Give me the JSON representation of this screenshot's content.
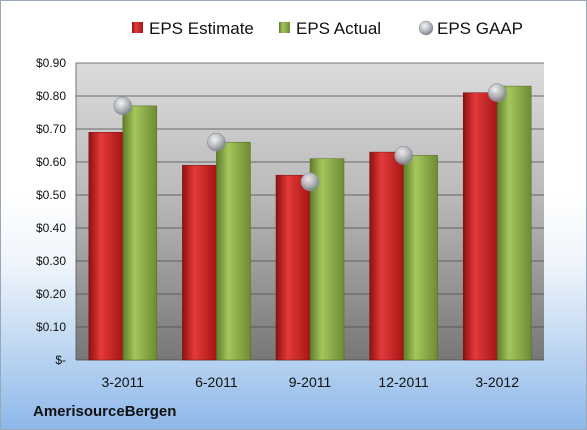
{
  "brand": "AmerisourceBergen",
  "colors": {
    "estimate": "#cc1f1f",
    "actual": "#8fb04a",
    "gaap": "#b8bcc4",
    "plot_top": "#d9d9d9",
    "plot_bottom": "#7a7a7a"
  },
  "chart_data": {
    "type": "bar",
    "categories": [
      "3-2011",
      "6-2011",
      "9-2011",
      "12-2011",
      "3-2012"
    ],
    "series": [
      {
        "name": "EPS Estimate",
        "kind": "bar",
        "values": [
          0.69,
          0.59,
          0.56,
          0.63,
          0.81
        ]
      },
      {
        "name": "EPS Actual",
        "kind": "bar",
        "values": [
          0.77,
          0.66,
          0.61,
          0.62,
          0.83
        ]
      },
      {
        "name": "EPS GAAP",
        "kind": "marker",
        "values": [
          0.77,
          0.66,
          0.54,
          0.62,
          0.81
        ]
      }
    ],
    "ylim": [
      0,
      0.9
    ],
    "yticks": [
      0,
      0.1,
      0.2,
      0.3,
      0.4,
      0.5,
      0.6,
      0.7,
      0.8,
      0.9
    ],
    "ytick_labels": [
      "$-",
      "$0.10",
      "$0.20",
      "$0.30",
      "$0.40",
      "$0.50",
      "$0.60",
      "$0.70",
      "$0.80",
      "$0.90"
    ],
    "grid": true,
    "legend": "top-center"
  }
}
